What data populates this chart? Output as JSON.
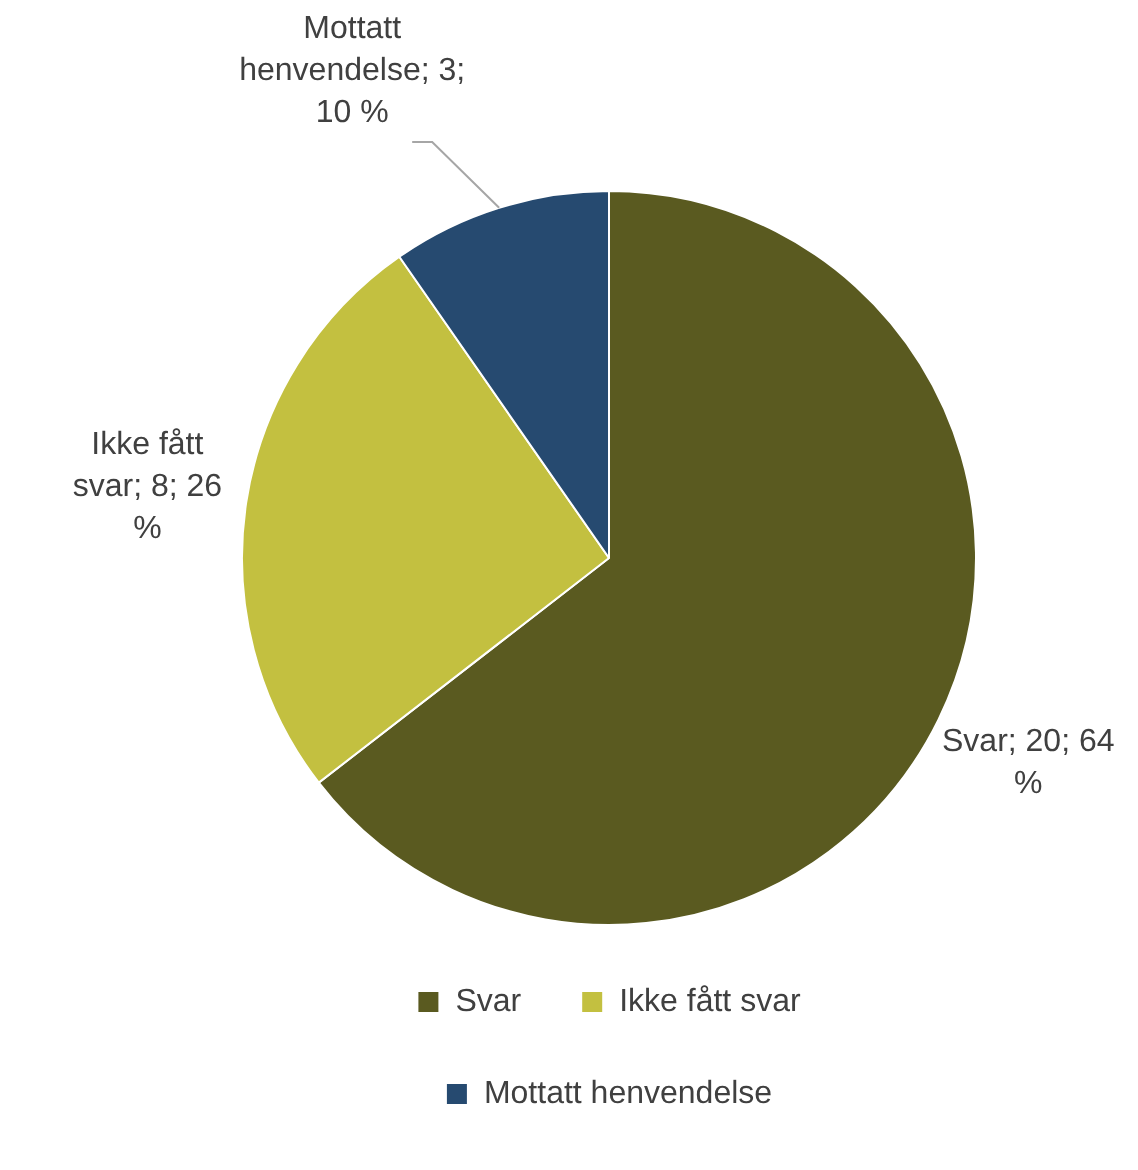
{
  "chart_data": {
    "type": "pie",
    "categories": [
      "Svar",
      "Ikke fått svar",
      "Mottatt henvendelse"
    ],
    "values": [
      20,
      8,
      3
    ],
    "colors": [
      "#5a5a20",
      "#c3c040",
      "#264a70"
    ],
    "value_labels": [
      "Svar; 20; 64 %",
      "Ikke fått svar; 8; 26 %",
      "Mottatt henvendelse; 3; 10 %"
    ],
    "legend": "bottom"
  }
}
